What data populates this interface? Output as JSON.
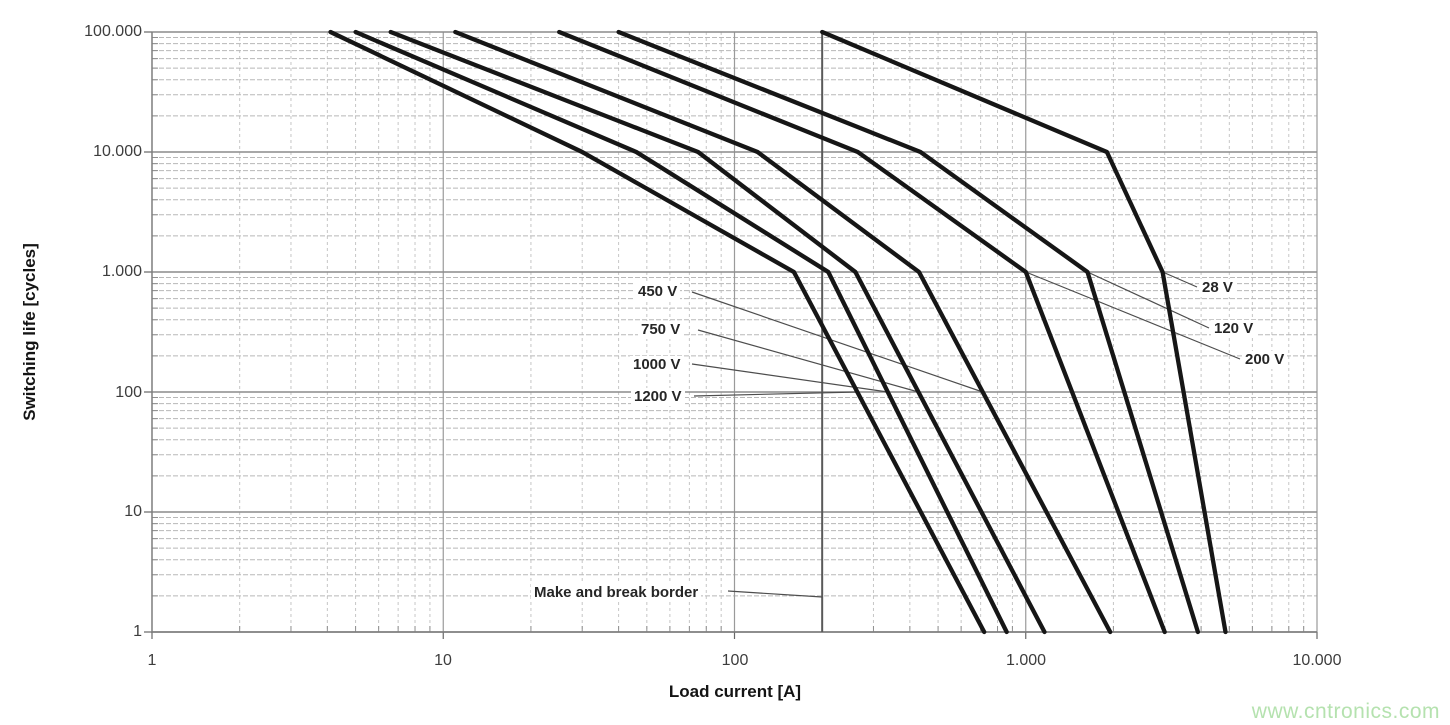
{
  "page": {
    "watermark": "www.cntronics.com",
    "watermark_color": "#b5e2af",
    "background": "#ffffff"
  },
  "chart_data": {
    "type": "line",
    "title": "",
    "xlabel": "Load current [A]",
    "ylabel": "Switching life [cycles]",
    "x_scale": "log",
    "y_scale": "log",
    "xlim": [
      1,
      10000
    ],
    "ylim": [
      1,
      100000
    ],
    "x_tick_labels": [
      "1",
      "10",
      "100",
      "1.000",
      "10.000"
    ],
    "y_tick_labels": [
      "1",
      "10",
      "100",
      "1.000",
      "10.000",
      "100.000"
    ],
    "grid": {
      "major": true,
      "minor": true,
      "minor_style": "dashed",
      "legend_position": "labels-on-curves"
    },
    "colors": {
      "curve": "#161616",
      "grid_major": "#8c8c8c",
      "grid_minor": "#bdbdbd",
      "reference_line": "#595959"
    },
    "series": [
      {
        "name": "28 V",
        "points": [
          [
            200,
            100000
          ],
          [
            1900,
            10000
          ],
          [
            2950,
            1000
          ],
          [
            4850,
            1
          ]
        ]
      },
      {
        "name": "120 V",
        "points": [
          [
            40,
            100000
          ],
          [
            435,
            10000
          ],
          [
            1630,
            1000
          ],
          [
            3900,
            1
          ]
        ]
      },
      {
        "name": "200 V",
        "points": [
          [
            25,
            100000
          ],
          [
            265,
            10000
          ],
          [
            1000,
            1000
          ],
          [
            3000,
            1
          ]
        ]
      },
      {
        "name": "450 V",
        "points": [
          [
            11,
            100000
          ],
          [
            120,
            10000
          ],
          [
            430,
            1000
          ],
          [
            1950,
            1
          ]
        ]
      },
      {
        "name": "750 V",
        "points": [
          [
            6.6,
            100000
          ],
          [
            75,
            10000
          ],
          [
            260,
            1000
          ],
          [
            1160,
            1
          ]
        ]
      },
      {
        "name": "1000 V",
        "points": [
          [
            5,
            100000
          ],
          [
            46,
            10000
          ],
          [
            210,
            1000
          ],
          [
            860,
            1
          ]
        ]
      },
      {
        "name": "1200 V",
        "points": [
          [
            4.1,
            100000
          ],
          [
            30,
            10000
          ],
          [
            160,
            1000
          ],
          [
            720,
            1
          ]
        ]
      }
    ],
    "reference_line": {
      "label": "Make and break border",
      "x_value": 200
    }
  }
}
